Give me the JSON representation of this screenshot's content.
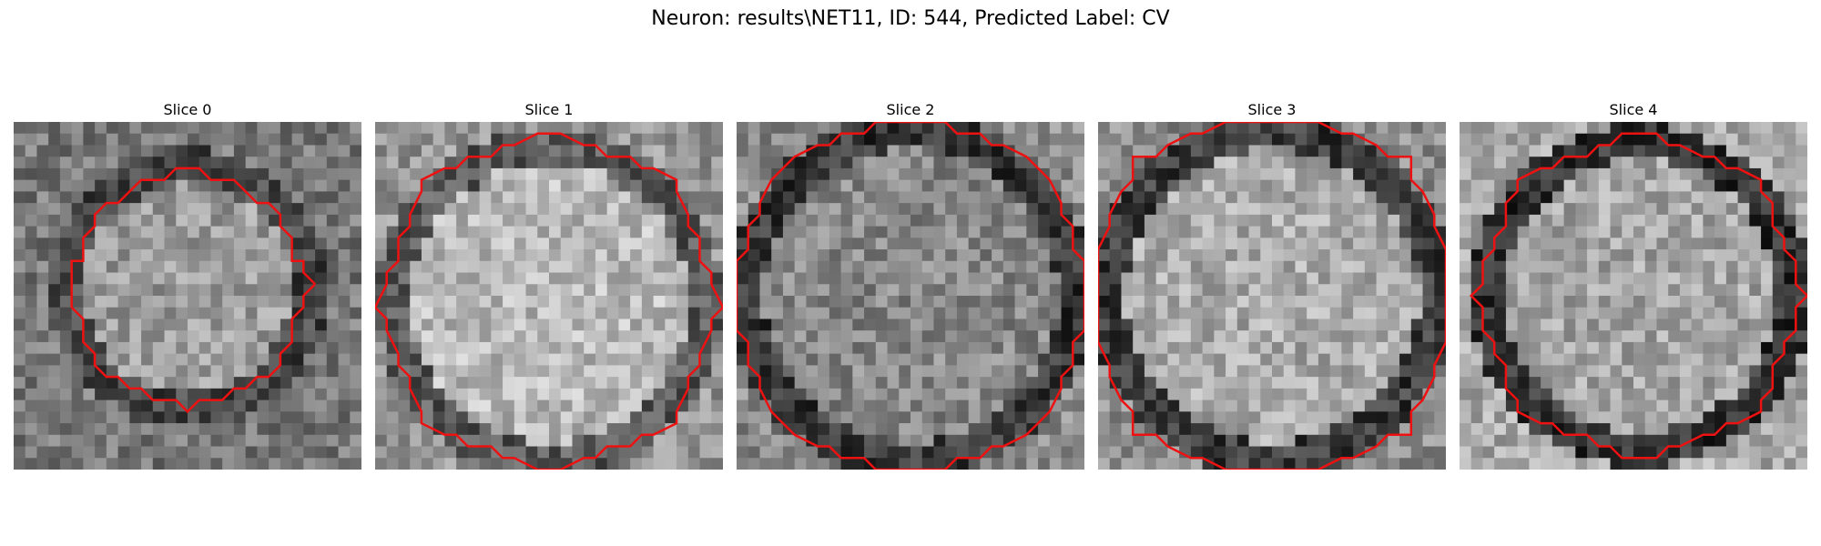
{
  "figure": {
    "title": "Neuron: results\\NET11, ID: 544, Predicted Label: CV"
  },
  "panels": [
    {
      "title": "Slice 0"
    },
    {
      "title": "Slice 1"
    },
    {
      "title": "Slice 2"
    },
    {
      "title": "Slice 3"
    },
    {
      "title": "Slice 4"
    }
  ],
  "colors": {
    "contour": "#ee1111"
  }
}
